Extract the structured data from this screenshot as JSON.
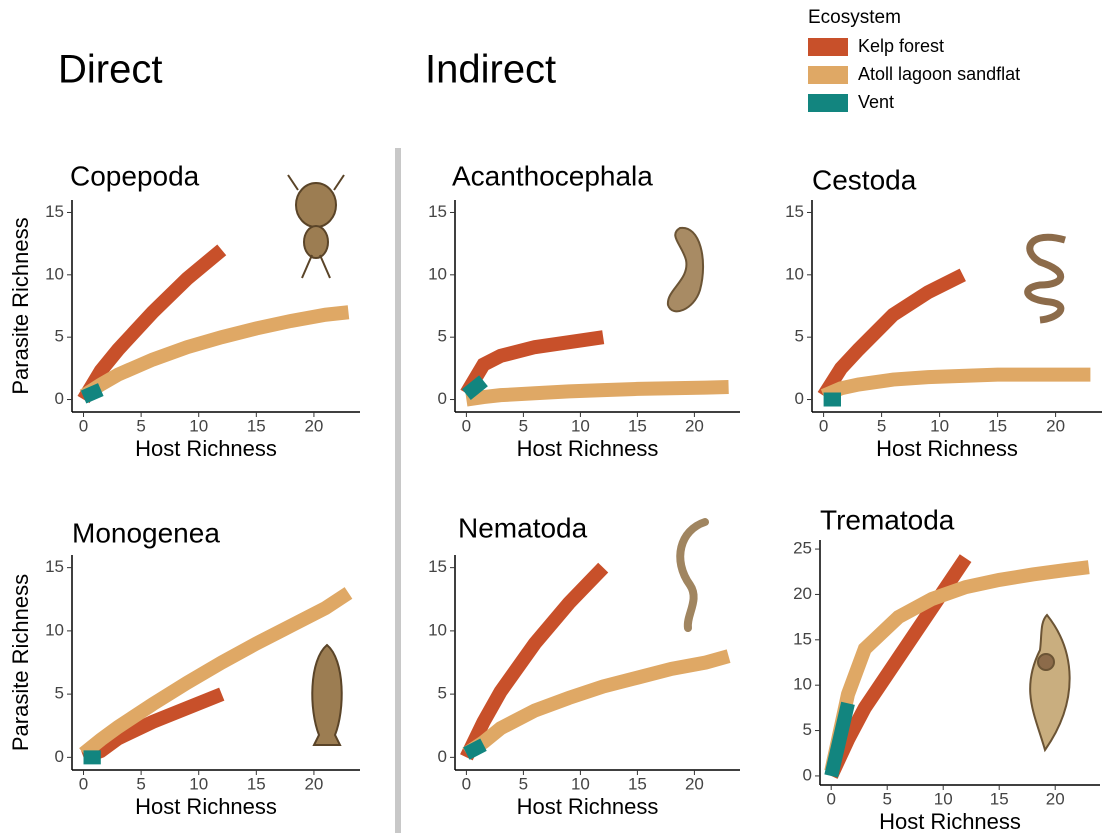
{
  "headers": [
    "Direct",
    "Indirect"
  ],
  "legend_title": "Ecosystem",
  "chart_data": [
    {
      "type": "line",
      "title": "Copepoda",
      "xlabel": "Host Richness",
      "ylabel": "Parasite Richness",
      "x": [
        0,
        1.5,
        3,
        6,
        9,
        12,
        15,
        18,
        21,
        23
      ],
      "xlim": [
        -1,
        24
      ],
      "ylim": [
        -1,
        16
      ],
      "xticks": [
        0,
        5,
        10,
        15,
        20
      ],
      "yticks": [
        0,
        5,
        10,
        15
      ],
      "series": [
        {
          "name": "Kelp forest",
          "color": "#c8502a",
          "values": [
            0,
            2.3,
            4,
            7,
            9.7,
            12,
            null,
            null,
            null,
            null
          ]
        },
        {
          "name": "Atoll lagoon sandflat",
          "color": "#dfa865",
          "values": [
            0.3,
            1.2,
            2,
            3.2,
            4.2,
            5,
            5.7,
            6.3,
            6.8,
            7
          ]
        },
        {
          "name": "Vent",
          "color": "#12857f",
          "values": [
            0.2,
            0.8,
            null,
            null,
            null,
            null,
            null,
            null,
            null,
            null
          ]
        }
      ]
    },
    {
      "type": "line",
      "title": "Acanthocephala",
      "xlabel": "Host Richness",
      "x": [
        0,
        1.5,
        3,
        6,
        9,
        12,
        15,
        18,
        21,
        23
      ],
      "xlim": [
        -1,
        24
      ],
      "ylim": [
        -1,
        16
      ],
      "xticks": [
        0,
        5,
        10,
        15,
        20
      ],
      "yticks": [
        0,
        5,
        10,
        15
      ],
      "series": [
        {
          "name": "Kelp forest",
          "color": "#c8502a",
          "values": [
            0.5,
            2.8,
            3.5,
            4.2,
            4.6,
            5,
            null,
            null,
            null,
            null
          ]
        },
        {
          "name": "Atoll lagoon sandflat",
          "color": "#dfa865",
          "values": [
            0,
            0.2,
            0.35,
            0.5,
            0.65,
            0.75,
            0.85,
            0.9,
            0.95,
            1
          ]
        },
        {
          "name": "Vent",
          "color": "#12857f",
          "values": [
            0.4,
            1.5,
            null,
            null,
            null,
            null,
            null,
            null,
            null,
            null
          ]
        }
      ]
    },
    {
      "type": "line",
      "title": "Cestoda",
      "xlabel": "Host Richness",
      "x": [
        0,
        1.5,
        3,
        6,
        9,
        12,
        15,
        18,
        21,
        23
      ],
      "xlim": [
        -1,
        24
      ],
      "ylim": [
        -1,
        16
      ],
      "xticks": [
        0,
        5,
        10,
        15,
        20
      ],
      "yticks": [
        0,
        5,
        10,
        15
      ],
      "series": [
        {
          "name": "Kelp forest",
          "color": "#c8502a",
          "values": [
            0.3,
            2.5,
            4,
            6.8,
            8.6,
            10,
            null,
            null,
            null,
            null
          ]
        },
        {
          "name": "Atoll lagoon sandflat",
          "color": "#dfa865",
          "values": [
            0.3,
            0.9,
            1.2,
            1.6,
            1.8,
            1.9,
            2,
            2,
            2,
            2
          ]
        },
        {
          "name": "Vent",
          "color": "#12857f",
          "values": [
            0,
            0,
            null,
            null,
            null,
            null,
            null,
            null,
            null,
            null
          ]
        }
      ]
    },
    {
      "type": "line",
      "title": "Monogenea",
      "xlabel": "Host Richness",
      "ylabel": "Parasite Richness",
      "x": [
        0,
        1.5,
        3,
        6,
        9,
        12,
        15,
        18,
        21,
        23
      ],
      "xlim": [
        -1,
        24
      ],
      "ylim": [
        -1,
        16
      ],
      "xticks": [
        0,
        5,
        10,
        15,
        20
      ],
      "yticks": [
        0,
        5,
        10,
        15
      ],
      "series": [
        {
          "name": "Kelp forest",
          "color": "#c8502a",
          "values": [
            0,
            0.5,
            1.5,
            2.8,
            3.9,
            5,
            null,
            null,
            null,
            null
          ]
        },
        {
          "name": "Atoll lagoon sandflat",
          "color": "#dfa865",
          "values": [
            0.3,
            1.4,
            2.4,
            4.2,
            5.9,
            7.5,
            9,
            10.4,
            11.8,
            13
          ]
        },
        {
          "name": "Vent",
          "color": "#12857f",
          "values": [
            0,
            0,
            null,
            null,
            null,
            null,
            null,
            null,
            null,
            null
          ]
        }
      ]
    },
    {
      "type": "line",
      "title": "Nematoda",
      "xlabel": "Host Richness",
      "x": [
        0,
        1.5,
        3,
        6,
        9,
        12,
        15,
        18,
        21,
        23
      ],
      "xlim": [
        -1,
        24
      ],
      "ylim": [
        -1,
        16
      ],
      "xticks": [
        0,
        5,
        10,
        15,
        20
      ],
      "yticks": [
        0,
        5,
        10,
        15
      ],
      "series": [
        {
          "name": "Kelp forest",
          "color": "#c8502a",
          "values": [
            0,
            2.8,
            5.2,
            9,
            12.2,
            15,
            null,
            null,
            null,
            null
          ]
        },
        {
          "name": "Atoll lagoon sandflat",
          "color": "#dfa865",
          "values": [
            0.3,
            1.2,
            2.3,
            3.7,
            4.7,
            5.6,
            6.3,
            7,
            7.5,
            8
          ]
        },
        {
          "name": "Vent",
          "color": "#12857f",
          "values": [
            0.3,
            1,
            null,
            null,
            null,
            null,
            null,
            null,
            null,
            null
          ]
        }
      ]
    },
    {
      "type": "line",
      "title": "Trematoda",
      "xlabel": "Host Richness",
      "x": [
        0,
        1.5,
        3,
        6,
        9,
        12,
        15,
        18,
        21,
        23
      ],
      "xlim": [
        -1,
        24
      ],
      "ylim": [
        -1,
        26
      ],
      "xticks": [
        0,
        5,
        10,
        15,
        20
      ],
      "yticks": [
        0,
        5,
        10,
        15,
        20,
        25
      ],
      "series": [
        {
          "name": "Kelp forest",
          "color": "#c8502a",
          "values": [
            0,
            4,
            7.5,
            13,
            18.5,
            24,
            null,
            null,
            null,
            null
          ]
        },
        {
          "name": "Atoll lagoon sandflat",
          "color": "#dfa865",
          "values": [
            0.5,
            9,
            14,
            17.5,
            19.5,
            20.8,
            21.6,
            22.2,
            22.7,
            23
          ]
        },
        {
          "name": "Vent",
          "color": "#12857f",
          "values": [
            0,
            8,
            null,
            null,
            null,
            null,
            null,
            null,
            null,
            null
          ]
        }
      ]
    }
  ]
}
